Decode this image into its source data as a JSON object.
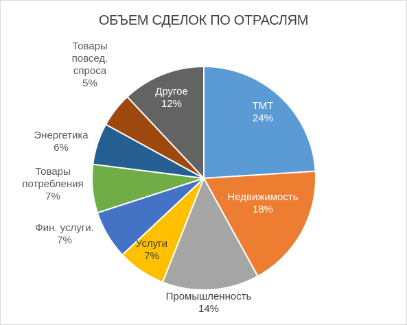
{
  "chart_data": {
    "type": "pie",
    "title": "ОБЪЕМ СДЕЛОК ПО ОТРАСЛЯМ",
    "start_angle_deg": 0,
    "direction": "clockwise",
    "label_color_inside": "#ffffff",
    "label_color_outside": "#595959",
    "slice_edge_color": "#ffffff",
    "slices": [
      {
        "label": [
          "ТМТ"
        ],
        "value": 24,
        "value_label": "24%",
        "color": "#5b9bd5",
        "label_position": "inside",
        "text_color": "#ffffff"
      },
      {
        "label": [
          "Недвижимость"
        ],
        "value": 18,
        "value_label": "18%",
        "color": "#ed7d31",
        "label_position": "inside",
        "text_color": "#ffffff"
      },
      {
        "label": [
          "Промышленность"
        ],
        "value": 14,
        "value_label": "14%",
        "color": "#a5a5a5",
        "label_position": "outside",
        "text_color": "#404040"
      },
      {
        "label": [
          "Услуги"
        ],
        "value": 7,
        "value_label": "7%",
        "color": "#ffc000",
        "label_position": "inside",
        "text_color": "#404040"
      },
      {
        "label": [
          "Фин. услуги."
        ],
        "value": 7,
        "value_label": "7%",
        "color": "#4472c4",
        "label_position": "outside",
        "text_color": "#595959"
      },
      {
        "label": [
          "Товары",
          "потребления"
        ],
        "value": 7,
        "value_label": "7%",
        "color": "#70ad47",
        "label_position": "outside",
        "text_color": "#595959"
      },
      {
        "label": [
          "Энергетика"
        ],
        "value": 6,
        "value_label": "6%",
        "color": "#255e91",
        "label_position": "outside",
        "text_color": "#595959"
      },
      {
        "label": [
          "Товары",
          "повсед.",
          "спроса"
        ],
        "value": 5,
        "value_label": "5%",
        "color": "#9e480e",
        "label_position": "outside",
        "text_color": "#595959"
      },
      {
        "label": [
          "Другое"
        ],
        "value": 12,
        "value_label": "12%",
        "color": "#636363",
        "label_position": "inside",
        "text_color": "#ffffff"
      }
    ]
  }
}
